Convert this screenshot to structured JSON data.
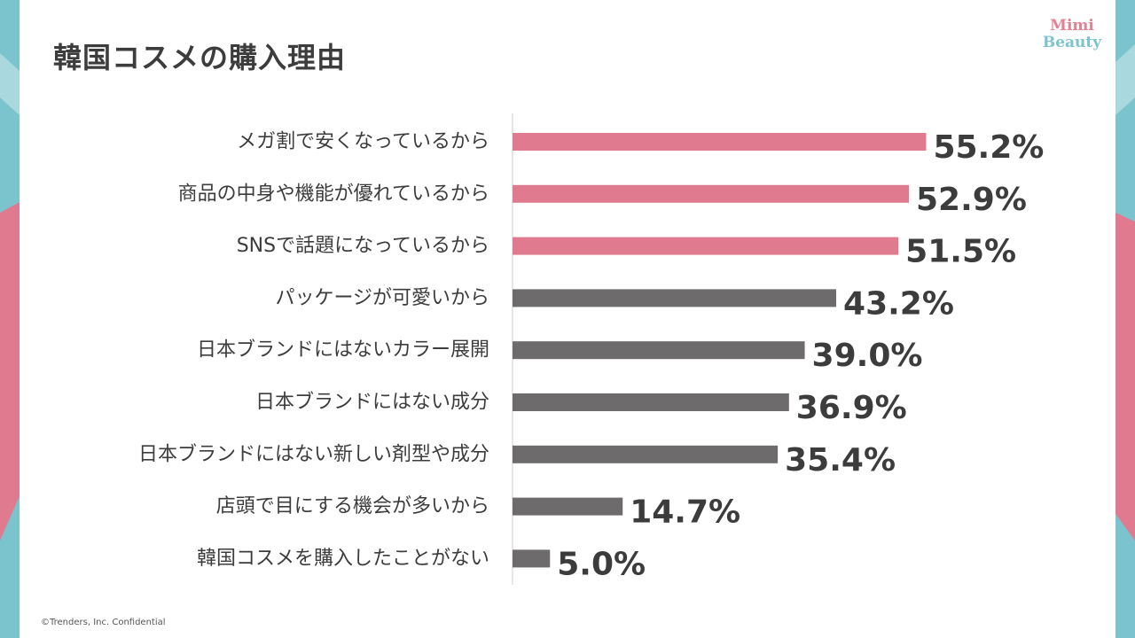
{
  "title": "韓国コスメの購入理由",
  "logo": {
    "line1": "Mimi",
    "line2": "Beauty"
  },
  "footer": "©Trenders, Inc.  Confidential",
  "colors": {
    "highlight": "#e07b8f",
    "default": "#6e6b6c",
    "accent_teal": "#7cc4cd",
    "accent_pink": "#e07b8f"
  },
  "chart_data": {
    "type": "bar",
    "orientation": "horizontal",
    "categories": [
      "メガ割で安くなっているから",
      "商品の中身や機能が優れているから",
      "SNSで話題になっているから",
      "パッケージが可愛いから",
      "日本ブランドにはないカラー展開",
      "日本ブランドにはない成分",
      "日本ブランドにはない新しい剤型や成分",
      "店頭で目にする機会が多いから",
      "韓国コスメを購入したことがない"
    ],
    "values": [
      55.2,
      52.9,
      51.5,
      43.2,
      39.0,
      36.9,
      35.4,
      14.7,
      5.0
    ],
    "value_labels": [
      "55.2%",
      "52.9%",
      "51.5%",
      "43.2%",
      "39.0%",
      "36.9%",
      "35.4%",
      "14.7%",
      "5.0%"
    ],
    "highlighted_count": 3,
    "xlim": [
      0,
      62
    ],
    "grid": false,
    "legend": "none"
  }
}
